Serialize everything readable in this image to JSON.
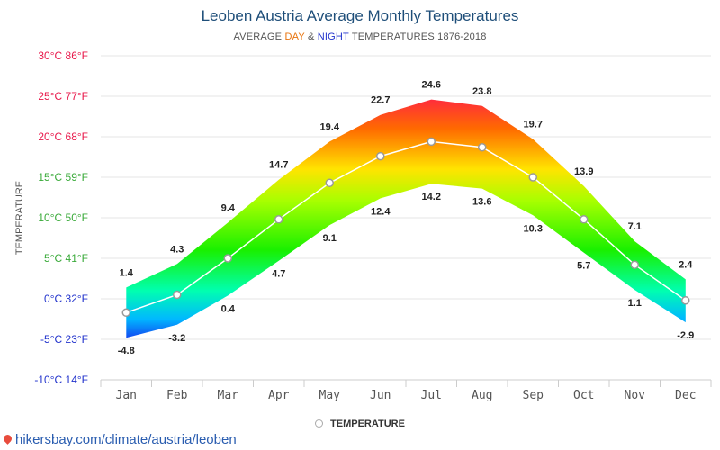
{
  "header": {
    "title": "Leoben Austria Average Monthly Temperatures",
    "subtitle_prefix": "AVERAGE ",
    "subtitle_day": "DAY",
    "subtitle_amp": " & ",
    "subtitle_night": "NIGHT",
    "subtitle_suffix": " TEMPERATURES 1876-2018"
  },
  "legend": {
    "label": "TEMPERATURE"
  },
  "footer": {
    "source": "hikersbay.com/climate/austria/leoben"
  },
  "chart_data": {
    "type": "area",
    "ylabel": "TEMPERATURE",
    "ylim": [
      -10,
      30
    ],
    "grid": true,
    "legend_placement": "bottom",
    "y_ticks": [
      {
        "value": 30,
        "label": "30°C 86°F"
      },
      {
        "value": 25,
        "label": "25°C 77°F"
      },
      {
        "value": 20,
        "label": "20°C 68°F"
      },
      {
        "value": 15,
        "label": "15°C 59°F"
      },
      {
        "value": 10,
        "label": "10°C 50°F"
      },
      {
        "value": 5,
        "label": "5°C 41°F"
      },
      {
        "value": 0,
        "label": "0°C 32°F"
      },
      {
        "value": -5,
        "label": "-5°C 23°F"
      },
      {
        "value": -10,
        "label": "-10°C 14°F"
      }
    ],
    "y_tick_colors": {
      "30": "#e8174a",
      "25": "#e8174a",
      "20": "#e8174a",
      "15": "#3aaa3a",
      "10": "#3aaa3a",
      "5": "#3aaa3a",
      "0": "#2233cc",
      "-5": "#2233cc",
      "-10": "#2233cc"
    },
    "categories": [
      "Jan",
      "Feb",
      "Mar",
      "Apr",
      "May",
      "Jun",
      "Jul",
      "Aug",
      "Sep",
      "Oct",
      "Nov",
      "Dec"
    ],
    "series": [
      {
        "values": [
          1.4,
          4.3,
          9.4,
          14.7,
          19.4,
          22.7,
          24.6,
          23.8,
          19.7,
          13.9,
          7.1,
          2.4
        ]
      },
      {
        "values": [
          -4.8,
          -3.2,
          0.4,
          4.7,
          9.1,
          12.4,
          14.2,
          13.6,
          10.3,
          5.7,
          1.1,
          -2.9
        ]
      },
      {
        "name": "TEMPERATURE",
        "values": [
          -1.7,
          0.5,
          5.0,
          9.8,
          14.3,
          17.6,
          19.4,
          18.7,
          15.0,
          9.8,
          4.2,
          -0.2
        ]
      }
    ]
  }
}
